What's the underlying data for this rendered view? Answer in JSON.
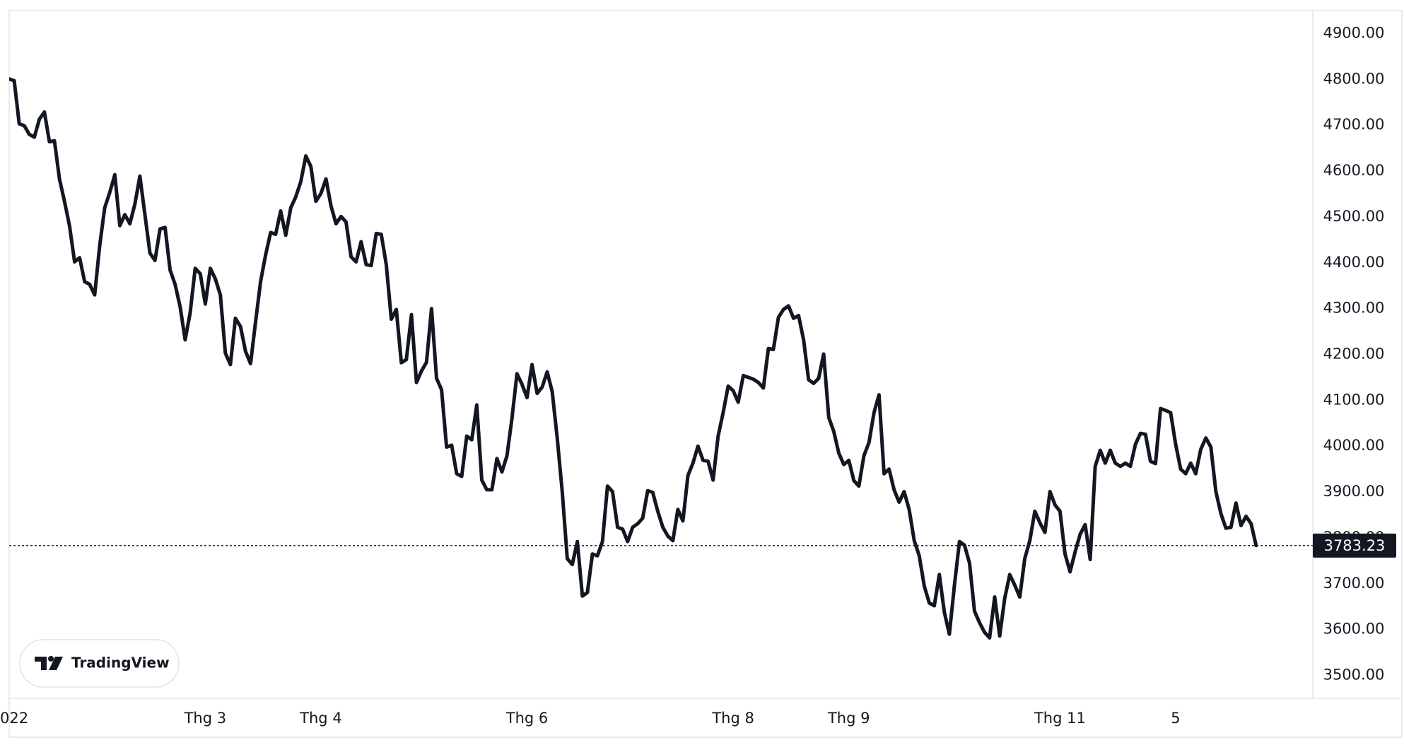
{
  "chart_data": {
    "type": "line",
    "color": "#131722",
    "categories": [
      "022",
      null,
      null,
      null,
      null,
      null,
      null,
      null,
      null,
      null,
      null,
      null,
      null,
      null,
      null,
      null,
      null,
      null,
      null,
      null,
      null,
      null,
      null,
      null,
      null,
      null,
      null,
      null,
      null,
      null,
      null,
      null,
      null,
      null,
      null,
      null,
      null,
      null,
      null,
      "Thg 3",
      null,
      null,
      null,
      null,
      null,
      null,
      null,
      null,
      null,
      null,
      null,
      null,
      null,
      null,
      null,
      null,
      null,
      null,
      null,
      null,
      null,
      null,
      "Thg 4",
      null,
      null,
      null,
      null,
      null,
      null,
      null,
      null,
      null,
      null,
      null,
      null,
      null,
      null,
      null,
      null,
      null,
      null,
      null,
      null,
      null,
      null,
      null,
      null,
      null,
      null,
      null,
      null,
      null,
      null,
      null,
      null,
      null,
      null,
      null,
      null,
      null,
      null,
      null,
      null,
      "Thg 6",
      null,
      null,
      null,
      null,
      null,
      null,
      null,
      null,
      null,
      null,
      null,
      null,
      null,
      null,
      null,
      null,
      null,
      null,
      null,
      null,
      null,
      null,
      null,
      null,
      null,
      null,
      null,
      null,
      null,
      null,
      null,
      null,
      null,
      null,
      null,
      null,
      null,
      null,
      null,
      null,
      "Thg 8",
      null,
      null,
      null,
      null,
      null,
      null,
      null,
      null,
      null,
      null,
      null,
      null,
      null,
      null,
      null,
      null,
      null,
      null,
      null,
      null,
      null,
      null,
      "Thg 9",
      null,
      null,
      null,
      null,
      null,
      null,
      null,
      null,
      null,
      null,
      null,
      null,
      null,
      null,
      null,
      null,
      null,
      null,
      null,
      null,
      null,
      null,
      null,
      null,
      null,
      null,
      null,
      null,
      null,
      null,
      null,
      null,
      null,
      null,
      null,
      null,
      null,
      null,
      null,
      null,
      null,
      "Thg 11",
      null,
      null,
      null,
      null,
      null,
      null,
      null,
      null,
      null,
      null,
      null,
      null,
      null,
      null,
      null,
      null,
      null,
      null,
      null,
      null,
      null,
      null,
      "5",
      null,
      null,
      null,
      null,
      null,
      null,
      null,
      null,
      null,
      null,
      null,
      null,
      null,
      null,
      null,
      null
    ],
    "values": [
      4801,
      4797,
      4703,
      4699,
      4680,
      4674,
      4713,
      4729,
      4664,
      4666,
      4583,
      4534,
      4481,
      4402,
      4411,
      4359,
      4353,
      4330,
      4437,
      4520,
      4553,
      4592,
      4481,
      4505,
      4485,
      4528,
      4589,
      4505,
      4421,
      4405,
      4474,
      4477,
      4384,
      4353,
      4304,
      4232,
      4291,
      4388,
      4376,
      4310,
      4388,
      4365,
      4330,
      4203,
      4178,
      4279,
      4261,
      4207,
      4180,
      4271,
      4359,
      4417,
      4466,
      4462,
      4513,
      4460,
      4520,
      4544,
      4577,
      4633,
      4610,
      4534,
      4551,
      4583,
      4524,
      4485,
      4501,
      4489,
      4413,
      4402,
      4446,
      4396,
      4394,
      4464,
      4462,
      4396,
      4277,
      4298,
      4182,
      4189,
      4287,
      4139,
      4164,
      4183,
      4300,
      4148,
      4123,
      3998,
      4002,
      3940,
      3934,
      4022,
      4014,
      4090,
      3926,
      3905,
      3905,
      3973,
      3944,
      3979,
      4061,
      4158,
      4135,
      4106,
      4178,
      4115,
      4129,
      4162,
      4119,
      4018,
      3901,
      3755,
      3742,
      3792,
      3673,
      3681,
      3765,
      3761,
      3792,
      3913,
      3901,
      3823,
      3819,
      3792,
      3823,
      3831,
      3843,
      3903,
      3899,
      3858,
      3823,
      3804,
      3794,
      3862,
      3837,
      3936,
      3963,
      4000,
      3969,
      3967,
      3926,
      4022,
      4073,
      4131,
      4121,
      4096,
      4154,
      4150,
      4146,
      4139,
      4127,
      4213,
      4211,
      4281,
      4298,
      4306,
      4279,
      4285,
      4232,
      4145,
      4137,
      4148,
      4201,
      4063,
      4032,
      3985,
      3960,
      3969,
      3925,
      3913,
      3979,
      4008,
      4073,
      4112,
      3940,
      3950,
      3905,
      3878,
      3901,
      3862,
      3794,
      3761,
      3695,
      3658,
      3652,
      3720,
      3638,
      3590,
      3697,
      3792,
      3784,
      3745,
      3640,
      3615,
      3594,
      3582,
      3671,
      3586,
      3668,
      3720,
      3697,
      3671,
      3755,
      3794,
      3858,
      3833,
      3812,
      3901,
      3872,
      3858,
      3765,
      3726,
      3769,
      3808,
      3829,
      3753,
      3956,
      3991,
      3963,
      3991,
      3963,
      3956,
      3963,
      3956,
      4004,
      4028,
      4026,
      3967,
      3962,
      4082,
      4078,
      4073,
      4004,
      3950,
      3940,
      3963,
      3940,
      3993,
      4018,
      3998,
      3901,
      3853,
      3821,
      3823,
      3876,
      3827,
      3847,
      3831,
      3783.23
    ],
    "ylim": [
      3450,
      4950
    ],
    "yticks": [
      {
        "value": 3500,
        "label": "3500.00"
      },
      {
        "value": 3600,
        "label": "3600.00"
      },
      {
        "value": 3700,
        "label": "3700.00"
      },
      {
        "value": 3800,
        "label": "3800.00"
      },
      {
        "value": 3900,
        "label": "3900.00"
      },
      {
        "value": 4000,
        "label": "4000.00"
      },
      {
        "value": 4100,
        "label": "4100.00"
      },
      {
        "value": 4200,
        "label": "4200.00"
      },
      {
        "value": 4300,
        "label": "4300.00"
      },
      {
        "value": 4400,
        "label": "4400.00"
      },
      {
        "value": 4500,
        "label": "4500.00"
      },
      {
        "value": 4600,
        "label": "4600.00"
      },
      {
        "value": 4700,
        "label": "4700.00"
      },
      {
        "value": 4800,
        "label": "4800.00"
      },
      {
        "value": 4900,
        "label": "4900.00"
      }
    ],
    "last_price": {
      "value": 3783.23,
      "label": "3783.23"
    },
    "watermark": "TradingView"
  }
}
